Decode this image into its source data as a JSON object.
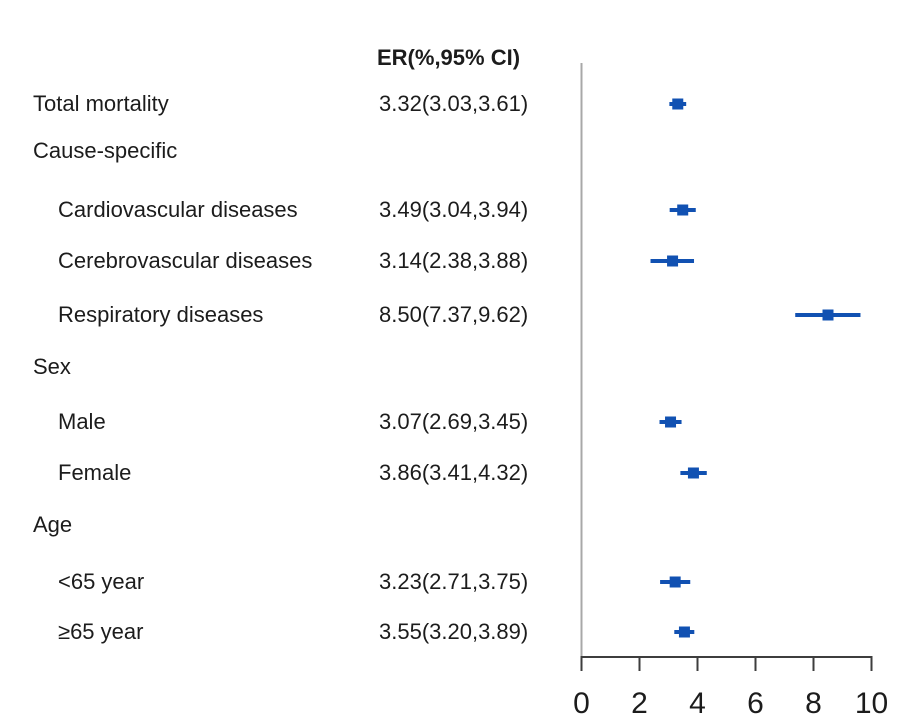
{
  "figure": {
    "er_column_header": "ER(%,95% CI)"
  },
  "colors": {
    "marker": "#1151b2",
    "axis": "#3d3d3d",
    "reference_line": "#a8a8a8",
    "text": "#1c1c1c"
  },
  "chart_data": {
    "type": "forest",
    "x_axis": {
      "min": 0,
      "max": 10,
      "ticks": [
        0,
        2,
        4,
        6,
        8,
        10
      ]
    },
    "reference_value": 0,
    "legend": "none",
    "rows": [
      {
        "label": "Total mortality",
        "indent": 0,
        "er_text": "3.32(3.03,3.61)",
        "est": 3.32,
        "lo": 3.03,
        "hi": 3.61
      },
      {
        "label": "Cause-specific",
        "indent": 0
      },
      {
        "label": "Cardiovascular diseases",
        "indent": 1,
        "er_text": "3.49(3.04,3.94)",
        "est": 3.49,
        "lo": 3.04,
        "hi": 3.94
      },
      {
        "label": "Cerebrovascular diseases",
        "indent": 1,
        "er_text": "3.14(2.38,3.88)",
        "est": 3.14,
        "lo": 2.38,
        "hi": 3.88
      },
      {
        "label": "Respiratory diseases",
        "indent": 1,
        "er_text": "8.50(7.37,9.62)",
        "est": 8.5,
        "lo": 7.37,
        "hi": 9.62
      },
      {
        "label": "Sex",
        "indent": 0
      },
      {
        "label": "Male",
        "indent": 1,
        "er_text": "3.07(2.69,3.45)",
        "est": 3.07,
        "lo": 2.69,
        "hi": 3.45
      },
      {
        "label": "Female",
        "indent": 1,
        "er_text": "3.86(3.41,4.32)",
        "est": 3.86,
        "lo": 3.41,
        "hi": 4.32
      },
      {
        "label": "Age",
        "indent": 0
      },
      {
        "label": "<65 year",
        "indent": 1,
        "er_text": "3.23(2.71,3.75)",
        "est": 3.23,
        "lo": 2.71,
        "hi": 3.75
      },
      {
        "label": "≥65 year",
        "indent": 1,
        "er_text": "3.55(3.20,3.89)",
        "est": 3.55,
        "lo": 3.2,
        "hi": 3.89
      }
    ]
  }
}
